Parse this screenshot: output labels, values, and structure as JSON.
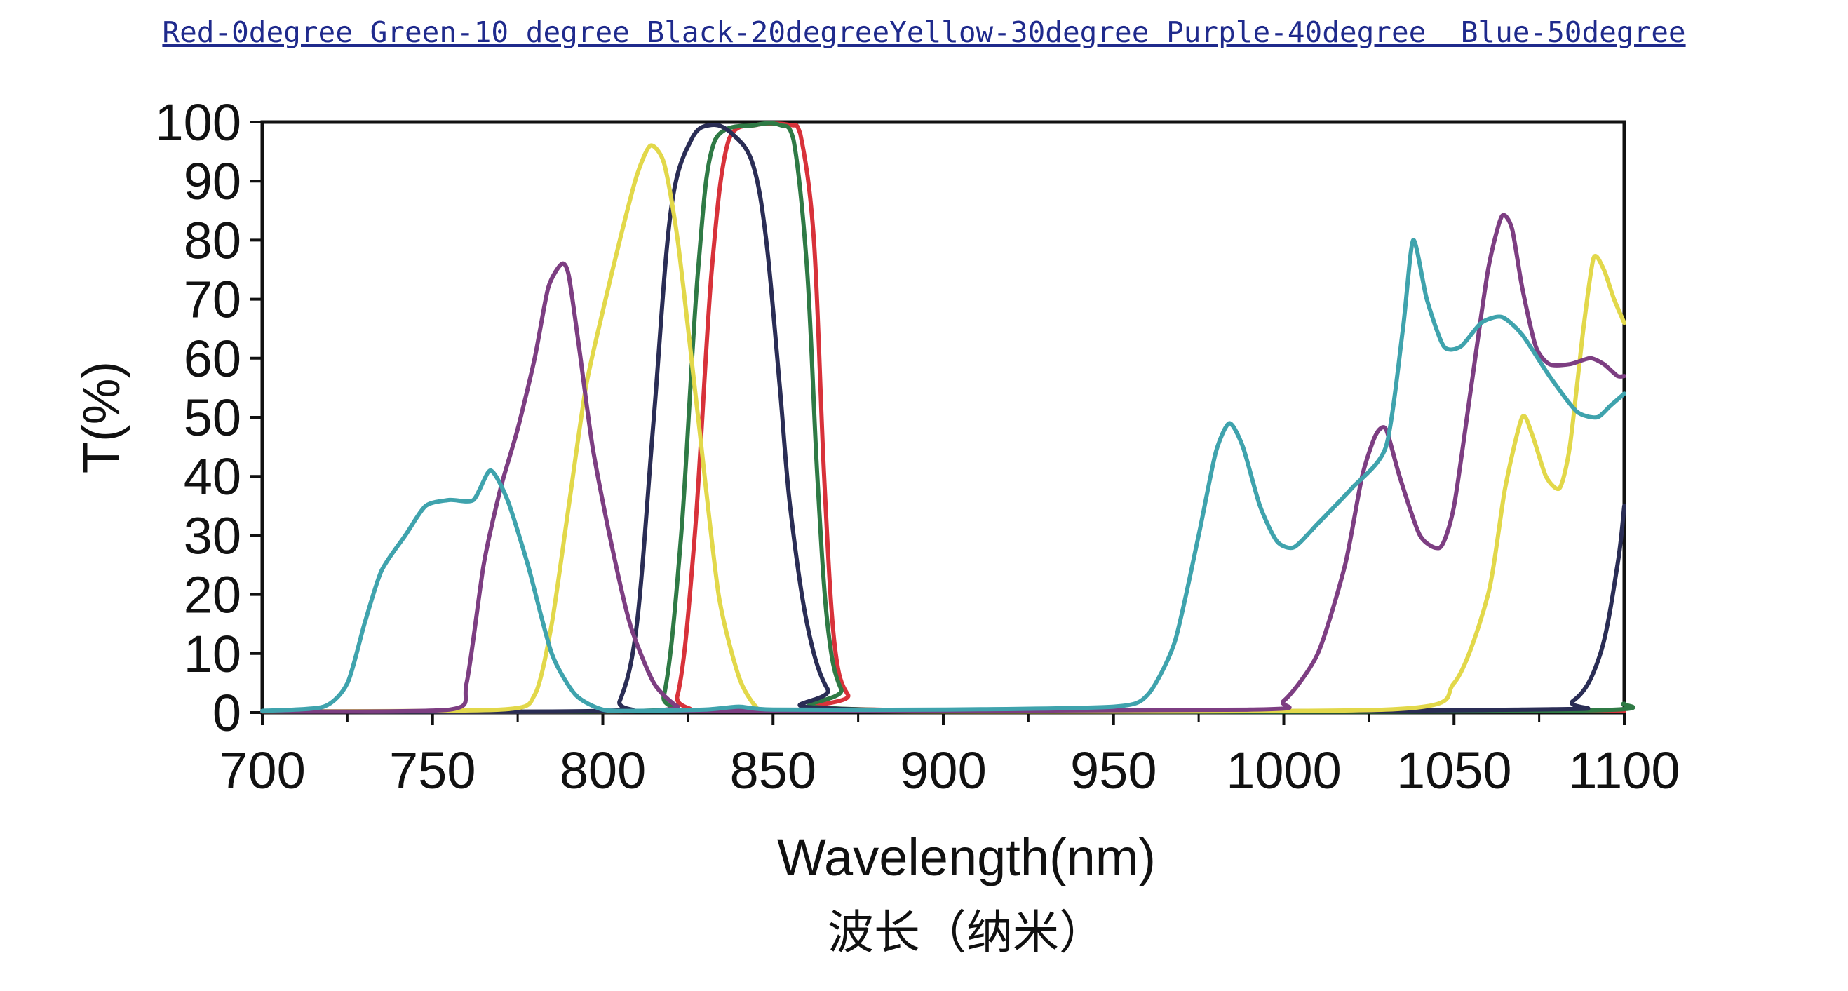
{
  "chart_data": {
    "type": "line",
    "title": "Red-0degree Green-10 degree Black-20degreeYellow-30degree Purple-40degree  Blue-50degree",
    "xlabel": "Wavelength(nm)",
    "xlabel_sub": "波长（纳米）",
    "ylabel": "T(%)",
    "xlim": [
      700,
      1100
    ],
    "ylim": [
      0,
      100
    ],
    "xticks": [
      700,
      750,
      800,
      850,
      900,
      950,
      1000,
      1050,
      1100
    ],
    "yticks": [
      0,
      10,
      20,
      30,
      40,
      50,
      60,
      70,
      80,
      90,
      100
    ],
    "grid": false,
    "series": [
      {
        "color": "#d8323a",
        "x": [
          700,
          815,
          822,
          827,
          832,
          837,
          845,
          855,
          858,
          862,
          865,
          868,
          872,
          880,
          1100
        ],
        "y": [
          0.2,
          0.3,
          3,
          30,
          75,
          97,
          99.5,
          99.5,
          98,
          80,
          40,
          12,
          3,
          0.5,
          0.3
        ]
      },
      {
        "color": "#2f7a45",
        "x": [
          700,
          812,
          818,
          823,
          828,
          833,
          845,
          852,
          856,
          860,
          863,
          866,
          870,
          878,
          1080,
          1100
        ],
        "y": [
          0.2,
          0.3,
          3,
          30,
          75,
          97,
          99.5,
          99.5,
          97,
          75,
          40,
          15,
          4,
          0.5,
          0.3,
          1.5
        ]
      },
      {
        "color": "#2a2d55",
        "x": [
          700,
          800,
          805,
          810,
          815,
          820,
          826,
          832,
          838,
          844,
          848,
          852,
          855,
          860,
          866,
          875,
          1070,
          1085,
          1093,
          1098,
          1100
        ],
        "y": [
          0.2,
          0.3,
          2,
          15,
          50,
          85,
          97,
          99.5,
          98,
          93,
          80,
          55,
          35,
          15,
          4,
          0.5,
          0.5,
          2,
          10,
          25,
          35
        ]
      },
      {
        "color": "#e2d84a",
        "x": [
          700,
          770,
          780,
          785,
          790,
          795,
          800,
          805,
          810,
          814,
          818,
          822,
          828,
          834,
          840,
          845,
          850,
          1030,
          1050,
          1060,
          1065,
          1070,
          1073,
          1077,
          1081,
          1084,
          1088,
          1091,
          1094,
          1097,
          1100
        ],
        "y": [
          0.2,
          0.5,
          3,
          15,
          35,
          55,
          68,
          80,
          91,
          96,
          93,
          80,
          50,
          20,
          6,
          1,
          0.3,
          0.5,
          5,
          20,
          38,
          50,
          47,
          40,
          38,
          45,
          65,
          77,
          75,
          70,
          66
        ],
        "tension": 0.35
      },
      {
        "color": "#7d3e82",
        "x": [
          700,
          755,
          760,
          765,
          770,
          775,
          780,
          784,
          788,
          790,
          793,
          797,
          802,
          808,
          815,
          822,
          828,
          990,
          1000,
          1010,
          1018,
          1023,
          1027,
          1030,
          1034,
          1040,
          1046,
          1050,
          1055,
          1060,
          1064,
          1067,
          1070,
          1074,
          1078,
          1084,
          1090,
          1094,
          1098,
          1100
        ],
        "y": [
          0.2,
          0.5,
          5,
          25,
          38,
          48,
          60,
          72,
          76,
          74,
          62,
          45,
          30,
          15,
          5,
          1,
          0.3,
          0.5,
          2,
          10,
          25,
          40,
          47,
          48,
          40,
          30,
          28,
          35,
          55,
          75,
          84,
          82,
          72,
          62,
          59,
          59,
          60,
          59,
          57,
          57
        ],
        "tension": 0.35
      },
      {
        "color": "#3fa3ad",
        "x": [
          700,
          718,
          725,
          730,
          735,
          742,
          748,
          755,
          762,
          767,
          772,
          778,
          785,
          792,
          800,
          810,
          830,
          840,
          850,
          900,
          950,
          960,
          968,
          975,
          980,
          984,
          988,
          993,
          998,
          1003,
          1010,
          1020,
          1030,
          1035,
          1038,
          1042,
          1047,
          1052,
          1058,
          1064,
          1070,
          1078,
          1086,
          1092,
          1096,
          1100
        ],
        "y": [
          0.3,
          1,
          5,
          15,
          24,
          30,
          35,
          36,
          36,
          41,
          36,
          25,
          10,
          3,
          0.5,
          0.3,
          0.5,
          1,
          0.5,
          0.5,
          1,
          3,
          12,
          30,
          44,
          49,
          45,
          35,
          29,
          28,
          32,
          38,
          45,
          65,
          80,
          70,
          62,
          62,
          66,
          67,
          64,
          57,
          51,
          50,
          52,
          54
        ],
        "tension": 0.35
      }
    ]
  }
}
